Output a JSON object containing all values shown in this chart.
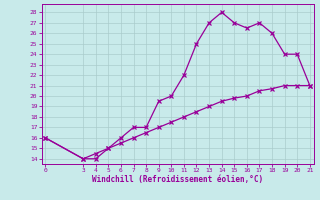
{
  "xlabel": "Windchill (Refroidissement éolien,°C)",
  "bg_color": "#c8eaea",
  "line_color": "#990099",
  "grid_color": "#aacccc",
  "ylim": [
    13.5,
    28.8
  ],
  "xlim": [
    -0.3,
    21.3
  ],
  "yticks": [
    14,
    15,
    16,
    17,
    18,
    19,
    20,
    21,
    22,
    23,
    24,
    25,
    26,
    27,
    28
  ],
  "xticks": [
    0,
    3,
    4,
    5,
    6,
    7,
    8,
    9,
    10,
    11,
    12,
    13,
    14,
    15,
    16,
    17,
    18,
    19,
    20,
    21
  ],
  "curve1_x": [
    0,
    3,
    4,
    5,
    6,
    7,
    8,
    9,
    10,
    11,
    12,
    13,
    14,
    15,
    16,
    17,
    18,
    19,
    20,
    21
  ],
  "curve1_y": [
    16,
    14,
    14,
    15,
    16,
    17,
    17,
    19.5,
    20,
    22,
    25,
    27,
    28,
    27,
    26.5,
    27,
    26,
    24,
    24,
    21
  ],
  "curve2_x": [
    0,
    3,
    4,
    5,
    6,
    7,
    8,
    9,
    10,
    11,
    12,
    13,
    14,
    15,
    16,
    17,
    18,
    19,
    20,
    21
  ],
  "curve2_y": [
    16,
    14,
    14.5,
    15,
    15.5,
    16,
    16.5,
    17,
    17.5,
    18,
    18.5,
    19,
    19.5,
    19.8,
    20,
    20.5,
    20.7,
    21,
    21,
    21
  ]
}
